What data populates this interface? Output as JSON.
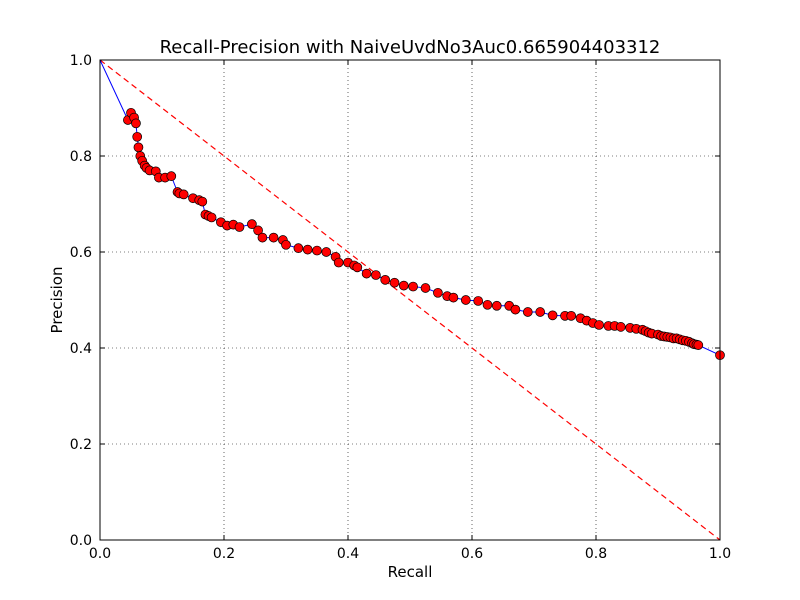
{
  "chart_data": {
    "type": "line",
    "title": "Recall-Precision with NaiveUvdNo3Auc0.665904403312",
    "xlabel": "Recall",
    "ylabel": "Precision",
    "xlim": [
      0.0,
      1.0
    ],
    "ylim": [
      0.0,
      1.0
    ],
    "xticks": [
      "0.0",
      "0.2",
      "0.4",
      "0.6",
      "0.8",
      "1.0"
    ],
    "yticks": [
      "0.0",
      "0.2",
      "0.4",
      "0.6",
      "0.8",
      "1.0"
    ],
    "grid": true,
    "series": [
      {
        "kind": "line-markers",
        "line_color": "#0000ff",
        "marker_color": "#ff0000",
        "x": [
          0.0,
          0.045,
          0.05,
          0.055,
          0.058,
          0.06,
          0.062,
          0.065,
          0.068,
          0.072,
          0.075,
          0.08,
          0.09,
          0.095,
          0.105,
          0.115,
          0.125,
          0.128,
          0.135,
          0.15,
          0.16,
          0.165,
          0.17,
          0.175,
          0.18,
          0.195,
          0.205,
          0.215,
          0.225,
          0.245,
          0.255,
          0.262,
          0.28,
          0.295,
          0.3,
          0.32,
          0.335,
          0.35,
          0.365,
          0.38,
          0.385,
          0.4,
          0.41,
          0.415,
          0.43,
          0.445,
          0.46,
          0.475,
          0.49,
          0.505,
          0.525,
          0.545,
          0.56,
          0.57,
          0.59,
          0.61,
          0.625,
          0.64,
          0.66,
          0.67,
          0.69,
          0.71,
          0.73,
          0.75,
          0.76,
          0.775,
          0.785,
          0.795,
          0.805,
          0.82,
          0.83,
          0.84,
          0.855,
          0.865,
          0.875,
          0.88,
          0.885,
          0.89,
          0.9,
          0.905,
          0.91,
          0.915,
          0.92,
          0.925,
          0.93,
          0.935,
          0.94,
          0.945,
          0.95,
          0.955,
          0.958,
          0.962,
          0.965,
          1.0
        ],
        "y": [
          1.0,
          0.875,
          0.89,
          0.88,
          0.868,
          0.84,
          0.818,
          0.8,
          0.79,
          0.78,
          0.775,
          0.77,
          0.768,
          0.755,
          0.755,
          0.758,
          0.725,
          0.722,
          0.72,
          0.712,
          0.708,
          0.705,
          0.678,
          0.675,
          0.672,
          0.662,
          0.655,
          0.657,
          0.652,
          0.658,
          0.645,
          0.63,
          0.63,
          0.625,
          0.615,
          0.608,
          0.605,
          0.603,
          0.6,
          0.59,
          0.578,
          0.578,
          0.572,
          0.568,
          0.555,
          0.552,
          0.542,
          0.536,
          0.53,
          0.528,
          0.525,
          0.515,
          0.508,
          0.505,
          0.5,
          0.498,
          0.49,
          0.488,
          0.488,
          0.48,
          0.475,
          0.475,
          0.468,
          0.467,
          0.467,
          0.462,
          0.457,
          0.452,
          0.448,
          0.446,
          0.446,
          0.444,
          0.442,
          0.44,
          0.438,
          0.435,
          0.432,
          0.43,
          0.428,
          0.425,
          0.424,
          0.423,
          0.422,
          0.42,
          0.42,
          0.418,
          0.416,
          0.415,
          0.413,
          0.41,
          0.408,
          0.407,
          0.406,
          0.385
        ]
      },
      {
        "kind": "dashed-line",
        "line_color": "#ff0000",
        "x": [
          0.0,
          1.0
        ],
        "y": [
          1.0,
          0.0
        ]
      }
    ]
  }
}
